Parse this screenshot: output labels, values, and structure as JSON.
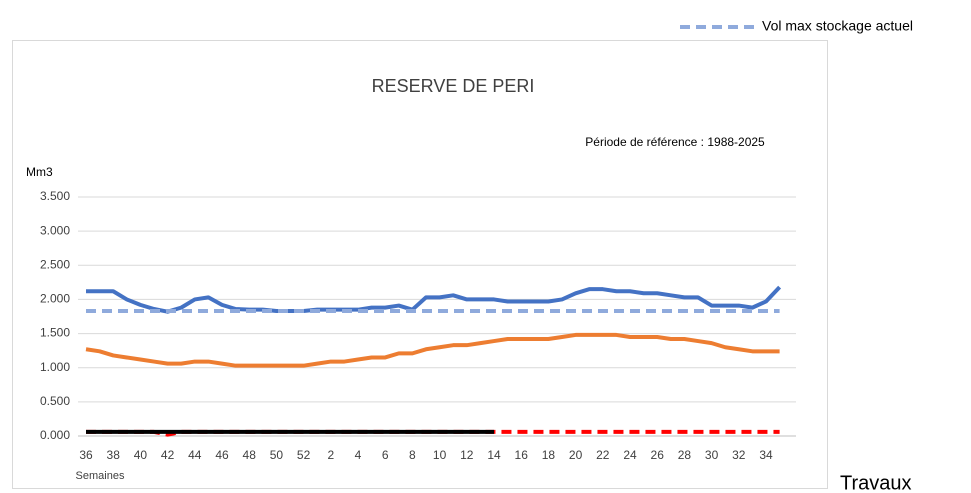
{
  "chart_data": {
    "type": "line",
    "title": "RESERVE  DE PERI",
    "subtitle": "Période de référence : 1988-2025",
    "y_label": "Mm3",
    "x_label": "Semaines",
    "annotation": "Travaux",
    "categories": [
      "36",
      null,
      "38",
      null,
      "40",
      null,
      "42",
      null,
      "44",
      null,
      "46",
      null,
      "48",
      null,
      "50",
      null,
      "52",
      null,
      "2",
      null,
      "4",
      null,
      "6",
      null,
      "8",
      null,
      "10",
      null,
      "12",
      null,
      "14",
      null,
      "16",
      null,
      "18",
      null,
      "20",
      null,
      "22",
      null,
      "24",
      null,
      "26",
      null,
      "28",
      null,
      "30",
      null,
      "32",
      null,
      "34",
      null
    ],
    "ylim": [
      0,
      3.5
    ],
    "yticks": [
      {
        "value": 0,
        "label": "0.000"
      },
      {
        "value": 0.5,
        "label": "0.500"
      },
      {
        "value": 1,
        "label": "1.000"
      },
      {
        "value": 1.5,
        "label": "1.500"
      },
      {
        "value": 2,
        "label": "2.000"
      },
      {
        "value": 2.5,
        "label": "2.500"
      },
      {
        "value": 3,
        "label": "3.000"
      },
      {
        "value": 3.5,
        "label": "3.500"
      }
    ],
    "grid": true,
    "legend": "top-right",
    "series": [
      {
        "color": "#4472c4",
        "dash": false,
        "values": [
          2.12,
          2.12,
          2.12,
          2.0,
          1.92,
          1.86,
          1.82,
          1.88,
          2.0,
          2.03,
          1.92,
          1.86,
          1.85,
          1.85,
          1.83,
          1.83,
          1.83,
          1.85,
          1.85,
          1.85,
          1.85,
          1.88,
          1.88,
          1.91,
          1.85,
          2.03,
          2.03,
          2.06,
          2.0,
          2.0,
          2.0,
          1.97,
          1.97,
          1.97,
          1.97,
          2.0,
          2.09,
          2.15,
          2.15,
          2.12,
          2.12,
          2.09,
          2.09,
          2.06,
          2.03,
          2.03,
          1.91,
          1.91,
          1.91,
          1.88,
          1.97,
          2.18
        ]
      },
      {
        "color": "#ed7d31",
        "dash": false,
        "values": [
          1.27,
          1.24,
          1.18,
          1.15,
          1.12,
          1.09,
          1.06,
          1.06,
          1.09,
          1.09,
          1.06,
          1.03,
          1.03,
          1.03,
          1.03,
          1.03,
          1.03,
          1.06,
          1.09,
          1.09,
          1.12,
          1.15,
          1.15,
          1.21,
          1.21,
          1.27,
          1.3,
          1.33,
          1.33,
          1.36,
          1.39,
          1.42,
          1.42,
          1.42,
          1.42,
          1.45,
          1.48,
          1.48,
          1.48,
          1.48,
          1.45,
          1.45,
          1.45,
          1.42,
          1.42,
          1.39,
          1.36,
          1.3,
          1.27,
          1.24,
          1.24,
          1.24
        ]
      },
      {
        "name": "Vol max stockage actuel",
        "color": "#8faadc",
        "dash": true,
        "values": [
          1.83,
          1.83,
          1.83,
          1.83,
          1.83,
          1.83,
          1.83,
          1.83,
          1.83,
          1.83,
          1.83,
          1.83,
          1.83,
          1.83,
          1.83,
          1.83,
          1.83,
          1.83,
          1.83,
          1.83,
          1.83,
          1.83,
          1.83,
          1.83,
          1.83,
          1.83,
          1.83,
          1.83,
          1.83,
          1.83,
          1.83,
          1.83,
          1.83,
          1.83,
          1.83,
          1.83,
          1.83,
          1.83,
          1.83,
          1.83,
          1.83,
          1.83,
          1.83,
          1.83,
          1.83,
          1.83,
          1.83,
          1.83,
          1.83,
          1.83,
          1.83,
          1.83
        ]
      },
      {
        "color": "#ff0000",
        "dash": true,
        "values": [
          0.06,
          0.06,
          0.06,
          0.06,
          0.06,
          0.06,
          0.02,
          0.06,
          0.06,
          0.06,
          0.06,
          0.06,
          0.06,
          0.06,
          0.06,
          0.06,
          0.06,
          0.06,
          0.06,
          0.06,
          0.06,
          0.06,
          0.06,
          0.06,
          0.06,
          0.06,
          0.06,
          0.06,
          0.06,
          0.06,
          0.06,
          0.06,
          0.06,
          0.06,
          0.06,
          0.06,
          0.06,
          0.06,
          0.06,
          0.06,
          0.06,
          0.06,
          0.06,
          0.06,
          0.06,
          0.06,
          0.06,
          0.06,
          0.06,
          0.06,
          0.06,
          0.06
        ]
      },
      {
        "color": "#000000",
        "dash": false,
        "values": [
          0.06,
          0.06,
          0.06,
          0.06,
          0.06,
          0.06,
          0.06,
          0.06,
          0.06,
          0.06,
          0.06,
          0.06,
          0.06,
          0.06,
          0.06,
          0.06,
          0.06,
          0.06,
          0.06,
          0.06,
          0.06,
          0.06,
          0.06,
          0.06,
          0.06,
          0.06,
          0.06,
          0.06,
          0.06,
          0.06,
          0.06,
          null,
          null,
          null,
          null,
          null,
          null,
          null,
          null,
          null,
          null,
          null,
          null,
          null,
          null,
          null,
          null,
          null,
          null,
          null,
          null,
          null
        ]
      }
    ]
  }
}
